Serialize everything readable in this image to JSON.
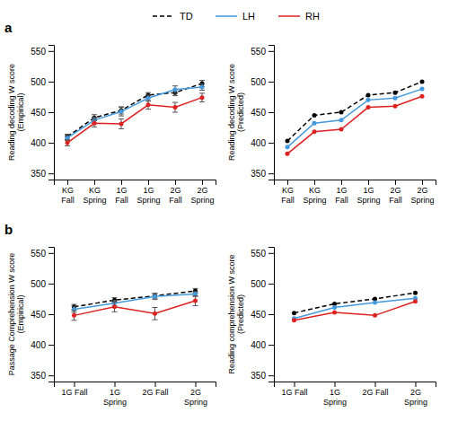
{
  "chart_data": [
    {
      "type": "line",
      "annotation": "a",
      "legend": "top",
      "grid": false,
      "categories": [
        "KG\nFall",
        "KG\nSpring",
        "1G\nFall",
        "1G\nSpring",
        "2G\nFall",
        "2G\nSpring"
      ],
      "y_label": "Reading decoding W score\n(Empirical)",
      "ylim": [
        340,
        560
      ],
      "yticks": [
        350,
        400,
        450,
        500,
        550
      ],
      "series": [
        {
          "name": "TD",
          "color": "#000000",
          "line_style": "dashed",
          "marker": "circle",
          "values": [
            410,
            441,
            453,
            478,
            482,
            497
          ],
          "errors": [
            4,
            5,
            6,
            4,
            5,
            5
          ]
        },
        {
          "name": "LH",
          "color": "#4499dd",
          "line_style": "solid",
          "marker": "circle",
          "values": [
            408,
            437,
            451,
            473,
            487,
            491
          ],
          "errors": [
            4,
            5,
            7,
            5,
            6,
            5
          ]
        },
        {
          "name": "RH",
          "color": "#dd2222",
          "line_style": "solid",
          "marker": "circle",
          "values": [
            400,
            432,
            431,
            462,
            458,
            474
          ],
          "errors": [
            5,
            6,
            8,
            7,
            8,
            7
          ]
        }
      ]
    },
    {
      "type": "line",
      "grid": false,
      "categories": [
        "KG\nFall",
        "KG\nSpring",
        "1G\nFall",
        "1G\nSpring",
        "2G\nFall",
        "2G\nSpring"
      ],
      "y_label": "Reading decoding W score\n(Predicted)",
      "ylim": [
        340,
        560
      ],
      "yticks": [
        350,
        400,
        450,
        500,
        550
      ],
      "series": [
        {
          "name": "TD",
          "color": "#000000",
          "line_style": "dashed",
          "marker": "circle",
          "values": [
            403,
            445,
            450,
            478,
            482,
            500
          ]
        },
        {
          "name": "LH",
          "color": "#4499dd",
          "line_style": "solid",
          "marker": "circle",
          "values": [
            393,
            432,
            437,
            470,
            473,
            488
          ]
        },
        {
          "name": "RH",
          "color": "#dd2222",
          "line_style": "solid",
          "marker": "circle",
          "values": [
            382,
            418,
            422,
            458,
            460,
            476
          ]
        }
      ]
    },
    {
      "type": "line",
      "annotation": "b",
      "grid": false,
      "categories": [
        "1G Fall",
        "1G\nSpring",
        "2G Fall",
        "2G\nSpring"
      ],
      "y_label": "Passage Comprehension W score\n(Empirical)",
      "ylim": [
        340,
        560
      ],
      "yticks": [
        350,
        400,
        450,
        500,
        550
      ],
      "series": [
        {
          "name": "TD",
          "color": "#000000",
          "line_style": "dashed",
          "marker": "circle",
          "values": [
            462,
            473,
            480,
            488
          ],
          "errors": [
            4,
            4,
            4,
            4
          ]
        },
        {
          "name": "LH",
          "color": "#4499dd",
          "line_style": "solid",
          "marker": "circle",
          "values": [
            458,
            468,
            479,
            483
          ],
          "errors": [
            5,
            5,
            5,
            4
          ]
        },
        {
          "name": "RH",
          "color": "#dd2222",
          "line_style": "solid",
          "marker": "circle",
          "values": [
            448,
            462,
            451,
            472
          ],
          "errors": [
            8,
            8,
            10,
            8
          ]
        }
      ]
    },
    {
      "type": "line",
      "grid": false,
      "categories": [
        "1G Fall",
        "1G\nSpring",
        "2G Fall",
        "2G\nSpring"
      ],
      "y_label": "Reading comprehension W score\n(Predicted)",
      "ylim": [
        340,
        560
      ],
      "yticks": [
        350,
        400,
        450,
        500,
        550
      ],
      "series": [
        {
          "name": "TD",
          "color": "#000000",
          "line_style": "dashed",
          "marker": "circle",
          "values": [
            452,
            467,
            475,
            485
          ]
        },
        {
          "name": "LH",
          "color": "#4499dd",
          "line_style": "solid",
          "marker": "circle",
          "values": [
            443,
            461,
            469,
            476
          ]
        },
        {
          "name": "RH",
          "color": "#dd2222",
          "line_style": "solid",
          "marker": "circle",
          "values": [
            440,
            453,
            448,
            471
          ]
        }
      ]
    }
  ]
}
